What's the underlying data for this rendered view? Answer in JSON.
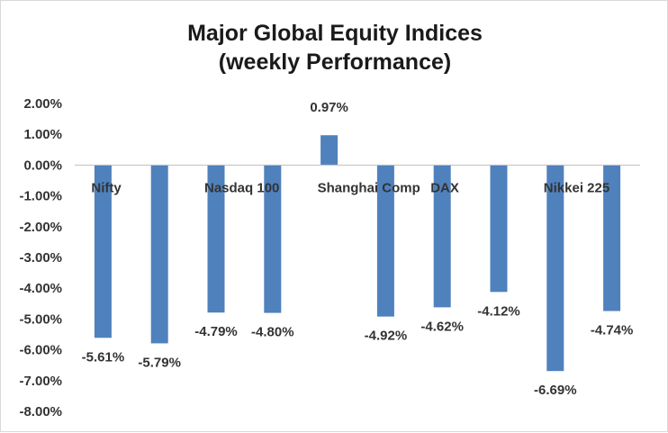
{
  "chart_data": {
    "type": "bar",
    "title_lines": [
      "Major Global Equity Indices",
      "(weekly Performance)"
    ],
    "categories": [
      "Nifty",
      "",
      "Nasdaq 100",
      "",
      "Shanghai Comp",
      "",
      "DAX",
      "",
      "Nikkei 225",
      ""
    ],
    "values": [
      -5.61,
      -5.79,
      -4.79,
      -4.8,
      0.97,
      -4.92,
      -4.62,
      -4.12,
      -6.69,
      -4.74
    ],
    "data_labels": [
      "-5.61%",
      "-5.79%",
      "-4.79%",
      "-4.80%",
      "0.97%",
      "-4.92%",
      "-4.62%",
      "-4.12%",
      "-6.69%",
      "-4.74%"
    ],
    "ylim": [
      -8,
      2
    ],
    "y_ticks": [
      2,
      1,
      0,
      -1,
      -2,
      -3,
      -4,
      -5,
      -6,
      -7,
      -8
    ],
    "y_tick_labels": [
      "2.00%",
      "1.00%",
      "0.00%",
      "-1.00%",
      "-2.00%",
      "-3.00%",
      "-4.00%",
      "-5.00%",
      "-6.00%",
      "-7.00%",
      "-8.00%"
    ],
    "xlabel": "",
    "ylabel": "",
    "grid": false,
    "legend": "none",
    "bar_color": "#4f81bd",
    "axis_color": "#bfbfbf"
  }
}
